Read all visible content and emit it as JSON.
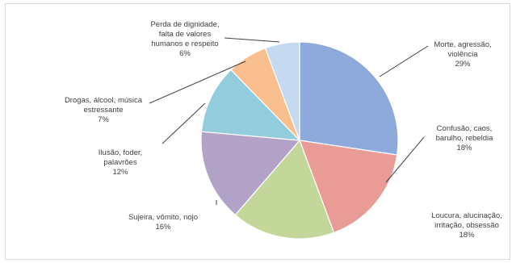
{
  "chart_data": {
    "type": "pie",
    "title": "",
    "slices": [
      {
        "label_lines": [
          "Morte, agressão,",
          "violência"
        ],
        "value": 29,
        "pct_text": "29%",
        "color": "#8ea9db"
      },
      {
        "label_lines": [
          "Confusão, caos,",
          "barulho, rebeldia"
        ],
        "value": 18,
        "pct_text": "18%",
        "color": "#e99b96"
      },
      {
        "label_lines": [
          "Loucura, alucinação,",
          "irritação, obsessão"
        ],
        "value": 18,
        "pct_text": "18%",
        "color": "#c4d79b"
      },
      {
        "label_lines": [
          "Sujeira, vômito, nojo"
        ],
        "value": 16,
        "pct_text": "16%",
        "color": "#b3a2c7"
      },
      {
        "label_lines": [
          "Ilusão, foder,",
          "palavrões"
        ],
        "value": 12,
        "pct_text": "12%",
        "color": "#93cddd"
      },
      {
        "label_lines": [
          "Drogas, álcool, música",
          "estressante"
        ],
        "value": 7,
        "pct_text": "7%",
        "color": "#f9bf8f"
      },
      {
        "label_lines": [
          "Perda de dignidade,",
          "falta de valores",
          "humanos e respeito"
        ],
        "value": 6,
        "pct_text": "6%",
        "color": "#c5d9f1"
      }
    ],
    "legend": "none",
    "data_labels": "outside with leader lines"
  }
}
